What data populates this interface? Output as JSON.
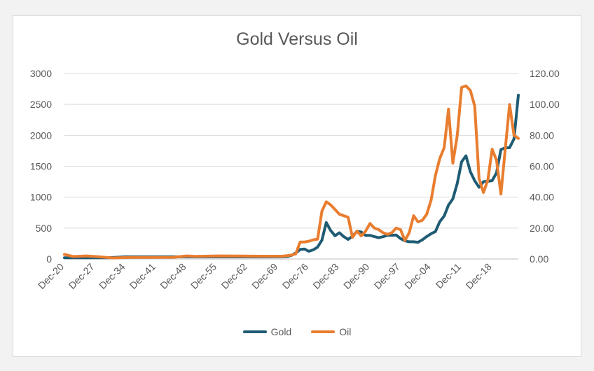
{
  "chart_data": {
    "type": "line",
    "title": "Gold Versus Oil",
    "xlabel": "",
    "ylabel": "",
    "x_tick_labels": [
      "Dec-20",
      "Dec-27",
      "Dec-34",
      "Dec-41",
      "Dec-48",
      "Dec-55",
      "Dec-62",
      "Dec-69",
      "Dec-76",
      "Dec-83",
      "Dec-90",
      "Dec-97",
      "Dec-04",
      "Dec-11",
      "Dec-18"
    ],
    "x_tick_years": [
      1920,
      1927,
      1934,
      1941,
      1948,
      1955,
      1962,
      1969,
      1976,
      1983,
      1990,
      1997,
      2004,
      2011,
      2018
    ],
    "x_range": [
      1920,
      2024
    ],
    "y_left": {
      "min": 0,
      "max": 3000,
      "step": 500,
      "tick_labels": [
        "0",
        "500",
        "1000",
        "1500",
        "2000",
        "2500",
        "3000"
      ]
    },
    "y_right": {
      "min": 0,
      "max": 120,
      "step": 20,
      "tick_labels": [
        "0.00",
        "20.00",
        "40.00",
        "60.00",
        "80.00",
        "100.00",
        "120.00"
      ]
    },
    "grid": true,
    "legend_position": "bottom",
    "series": [
      {
        "name": "Gold",
        "axis": "left",
        "color": "#1f5c74",
        "points": [
          [
            1920,
            20
          ],
          [
            1925,
            20
          ],
          [
            1930,
            20
          ],
          [
            1934,
            35
          ],
          [
            1940,
            35
          ],
          [
            1945,
            35
          ],
          [
            1950,
            35
          ],
          [
            1955,
            35
          ],
          [
            1960,
            35
          ],
          [
            1965,
            35
          ],
          [
            1970,
            36
          ],
          [
            1971,
            41
          ],
          [
            1972,
            58
          ],
          [
            1973,
            97
          ],
          [
            1974,
            154
          ],
          [
            1975,
            161
          ],
          [
            1976,
            125
          ],
          [
            1977,
            148
          ],
          [
            1978,
            193
          ],
          [
            1979,
            306
          ],
          [
            1980,
            590
          ],
          [
            1981,
            460
          ],
          [
            1982,
            376
          ],
          [
            1983,
            424
          ],
          [
            1984,
            361
          ],
          [
            1985,
            317
          ],
          [
            1986,
            368
          ],
          [
            1987,
            447
          ],
          [
            1988,
            437
          ],
          [
            1989,
            381
          ],
          [
            1990,
            383
          ],
          [
            1991,
            362
          ],
          [
            1992,
            344
          ],
          [
            1993,
            360
          ],
          [
            1994,
            384
          ],
          [
            1995,
            384
          ],
          [
            1996,
            388
          ],
          [
            1997,
            331
          ],
          [
            1998,
            294
          ],
          [
            1999,
            279
          ],
          [
            2000,
            279
          ],
          [
            2001,
            271
          ],
          [
            2002,
            310
          ],
          [
            2003,
            363
          ],
          [
            2004,
            409
          ],
          [
            2005,
            444
          ],
          [
            2006,
            603
          ],
          [
            2007,
            695
          ],
          [
            2008,
            872
          ],
          [
            2009,
            972
          ],
          [
            2010,
            1224
          ],
          [
            2011,
            1571
          ],
          [
            2012,
            1669
          ],
          [
            2013,
            1411
          ],
          [
            2014,
            1266
          ],
          [
            2015,
            1160
          ],
          [
            2016,
            1251
          ],
          [
            2017,
            1257
          ],
          [
            2018,
            1268
          ],
          [
            2019,
            1393
          ],
          [
            2020,
            1770
          ],
          [
            2021,
            1799
          ],
          [
            2022,
            1800
          ],
          [
            2023,
            1943
          ],
          [
            2024,
            2650
          ]
        ]
      },
      {
        "name": "Oil",
        "axis": "right",
        "color": "#e97d2f",
        "points": [
          [
            1920,
            3
          ],
          [
            1922,
            1.6
          ],
          [
            1925,
            2
          ],
          [
            1928,
            1.4
          ],
          [
            1931,
            0.7
          ],
          [
            1935,
            1
          ],
          [
            1940,
            1
          ],
          [
            1945,
            1.1
          ],
          [
            1948,
            2
          ],
          [
            1950,
            1.7
          ],
          [
            1955,
            2
          ],
          [
            1960,
            1.9
          ],
          [
            1965,
            1.8
          ],
          [
            1970,
            1.8
          ],
          [
            1972,
            2.5
          ],
          [
            1973,
            3.3
          ],
          [
            1974,
            11
          ],
          [
            1975,
            11
          ],
          [
            1976,
            11.5
          ],
          [
            1977,
            12.4
          ],
          [
            1978,
            12.8
          ],
          [
            1979,
            31
          ],
          [
            1980,
            37
          ],
          [
            1981,
            35
          ],
          [
            1982,
            32
          ],
          [
            1983,
            29
          ],
          [
            1984,
            28
          ],
          [
            1985,
            27
          ],
          [
            1986,
            14
          ],
          [
            1987,
            18
          ],
          [
            1988,
            15
          ],
          [
            1989,
            18
          ],
          [
            1990,
            23
          ],
          [
            1991,
            20
          ],
          [
            1992,
            19
          ],
          [
            1993,
            17
          ],
          [
            1994,
            16
          ],
          [
            1995,
            17
          ],
          [
            1996,
            20
          ],
          [
            1997,
            19
          ],
          [
            1998,
            12
          ],
          [
            1999,
            17
          ],
          [
            2000,
            28
          ],
          [
            2001,
            24
          ],
          [
            2002,
            25
          ],
          [
            2003,
            29
          ],
          [
            2004,
            38
          ],
          [
            2005,
            54
          ],
          [
            2006,
            65
          ],
          [
            2007,
            72
          ],
          [
            2008,
            97
          ],
          [
            2009,
            62
          ],
          [
            2010,
            80
          ],
          [
            2011,
            111
          ],
          [
            2012,
            112
          ],
          [
            2013,
            109
          ],
          [
            2014,
            99
          ],
          [
            2015,
            52
          ],
          [
            2016,
            43
          ],
          [
            2017,
            51
          ],
          [
            2018,
            71
          ],
          [
            2019,
            64
          ],
          [
            2020,
            42
          ],
          [
            2021,
            71
          ],
          [
            2022,
            100
          ],
          [
            2023,
            80
          ],
          [
            2024,
            78
          ]
        ]
      }
    ]
  }
}
